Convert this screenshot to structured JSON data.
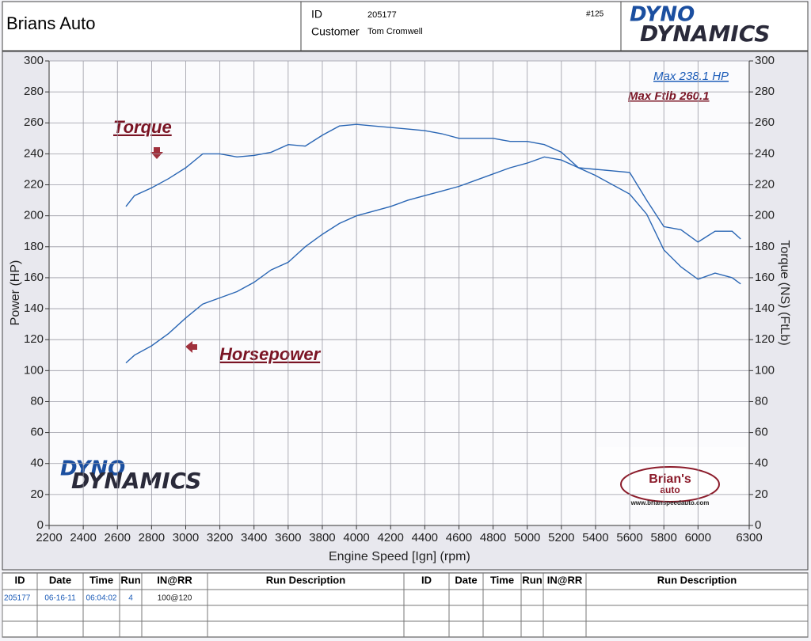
{
  "header": {
    "title": "Brians Auto",
    "id_label": "ID",
    "id_value": "205177",
    "number": "#125",
    "customer_label": "Customer",
    "customer_value": "Tom Cromwell",
    "logo": [
      "DYNO",
      "DYNAMICS"
    ],
    "shop_logo": [
      "Brian's",
      "auto",
      "www.brianspeedauto.com"
    ]
  },
  "chart_data": {
    "type": "line",
    "xlabel": "Engine Speed [Ign] (rpm)",
    "ylabel": "Power (HP)",
    "y2label": "Torque (NS) (FtLb)",
    "annotations": [
      "Max 238.1 HP",
      "Max Ftlb 260.1"
    ],
    "x": [
      2650,
      2700,
      2800,
      2900,
      3000,
      3100,
      3200,
      3300,
      3400,
      3500,
      3600,
      3700,
      3800,
      3900,
      4000,
      4100,
      4200,
      4300,
      4400,
      4500,
      4600,
      4700,
      4800,
      4900,
      5000,
      5100,
      5200,
      5300,
      5400,
      5500,
      5600,
      5700,
      5800,
      5900,
      6000,
      6100,
      6200,
      6250
    ],
    "series": [
      {
        "name": "Torque",
        "color": "#2a66b4",
        "axis": "y2",
        "values": [
          206,
          213,
          218,
          224,
          231,
          240,
          240,
          238,
          239,
          241,
          246,
          245,
          252,
          258,
          259,
          258,
          257,
          256,
          255,
          253,
          250,
          250,
          250,
          248,
          248,
          246,
          241,
          231,
          226,
          220,
          214,
          201,
          178,
          167,
          159,
          163,
          160,
          156
        ]
      },
      {
        "name": "Horsepower",
        "color": "#2a66b4",
        "values": [
          105,
          110,
          116,
          124,
          134,
          143,
          147,
          151,
          157,
          165,
          170,
          180,
          188,
          195,
          200,
          203,
          206,
          210,
          213,
          216,
          219,
          223,
          227,
          231,
          234,
          238,
          236,
          231,
          230,
          229,
          228,
          210,
          193,
          191,
          183,
          190,
          190,
          185
        ]
      }
    ],
    "xlim": [
      2200,
      6300
    ],
    "xticks": [
      2200,
      2400,
      2600,
      2800,
      3000,
      3200,
      3400,
      3600,
      3800,
      4000,
      4200,
      4400,
      4600,
      4800,
      5000,
      5200,
      5400,
      5600,
      5800,
      6000,
      6300
    ],
    "ylim": [
      0,
      300
    ],
    "yticks": [
      0,
      20,
      40,
      60,
      80,
      100,
      120,
      140,
      160,
      180,
      200,
      220,
      240,
      260,
      280,
      300
    ],
    "y2lim": [
      0,
      300
    ],
    "y2ticks": [
      0,
      20,
      40,
      60,
      80,
      100,
      120,
      140,
      160,
      180,
      200,
      220,
      240,
      260,
      280,
      300
    ],
    "grid": true
  },
  "table": {
    "left": {
      "columns": [
        "ID",
        "Date",
        "Time",
        "Run",
        "IN@RR",
        "Run Description"
      ],
      "rows": [
        [
          "205177",
          "06-16-11",
          "06:04:02",
          "4",
          "100@120",
          ""
        ]
      ]
    },
    "right": {
      "columns": [
        "ID",
        "Date",
        "Time",
        "Run",
        "IN@RR",
        "Run Description"
      ]
    }
  }
}
